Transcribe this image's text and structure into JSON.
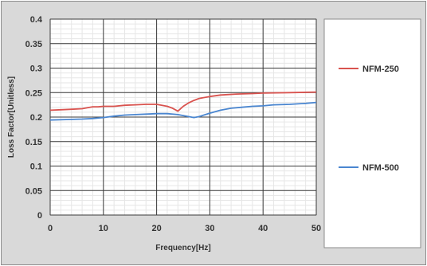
{
  "chart_data": {
    "type": "line",
    "title": "",
    "xlabel": "Frequency[Hz]",
    "ylabel": "Loss Factor[Unitless]",
    "xlim": [
      0,
      50
    ],
    "ylim": [
      0,
      0.4
    ],
    "x_ticks": [
      "0",
      "10",
      "20",
      "30",
      "40",
      "50"
    ],
    "y_ticks": [
      "0",
      "0.05",
      "0.1",
      "0.15",
      "0.2",
      "0.25",
      "0.3",
      "0.35",
      "0.4"
    ],
    "grid": true,
    "legend_position": "right",
    "series": [
      {
        "name": "NFM-250",
        "color": "#d9534f",
        "x": [
          0,
          2,
          4,
          6,
          7,
          8,
          9,
          10,
          12,
          14,
          16,
          18,
          20,
          21,
          22,
          23,
          24,
          25,
          26,
          27,
          28,
          30,
          32,
          35,
          38,
          40,
          45,
          50
        ],
        "y": [
          0.214,
          0.215,
          0.216,
          0.217,
          0.219,
          0.221,
          0.221,
          0.222,
          0.222,
          0.224,
          0.225,
          0.226,
          0.226,
          0.224,
          0.222,
          0.218,
          0.212,
          0.222,
          0.229,
          0.234,
          0.238,
          0.242,
          0.245,
          0.247,
          0.248,
          0.249,
          0.25,
          0.251
        ]
      },
      {
        "name": "NFM-500",
        "color": "#4a86d0",
        "x": [
          0,
          3,
          6,
          8,
          10,
          12,
          14,
          16,
          18,
          20,
          22,
          24,
          26,
          27,
          28,
          30,
          32,
          34,
          36,
          38,
          40,
          42,
          45,
          48,
          50
        ],
        "y": [
          0.194,
          0.195,
          0.196,
          0.197,
          0.199,
          0.202,
          0.204,
          0.205,
          0.206,
          0.207,
          0.207,
          0.205,
          0.201,
          0.199,
          0.201,
          0.208,
          0.214,
          0.218,
          0.22,
          0.222,
          0.223,
          0.225,
          0.226,
          0.228,
          0.23
        ]
      }
    ]
  }
}
